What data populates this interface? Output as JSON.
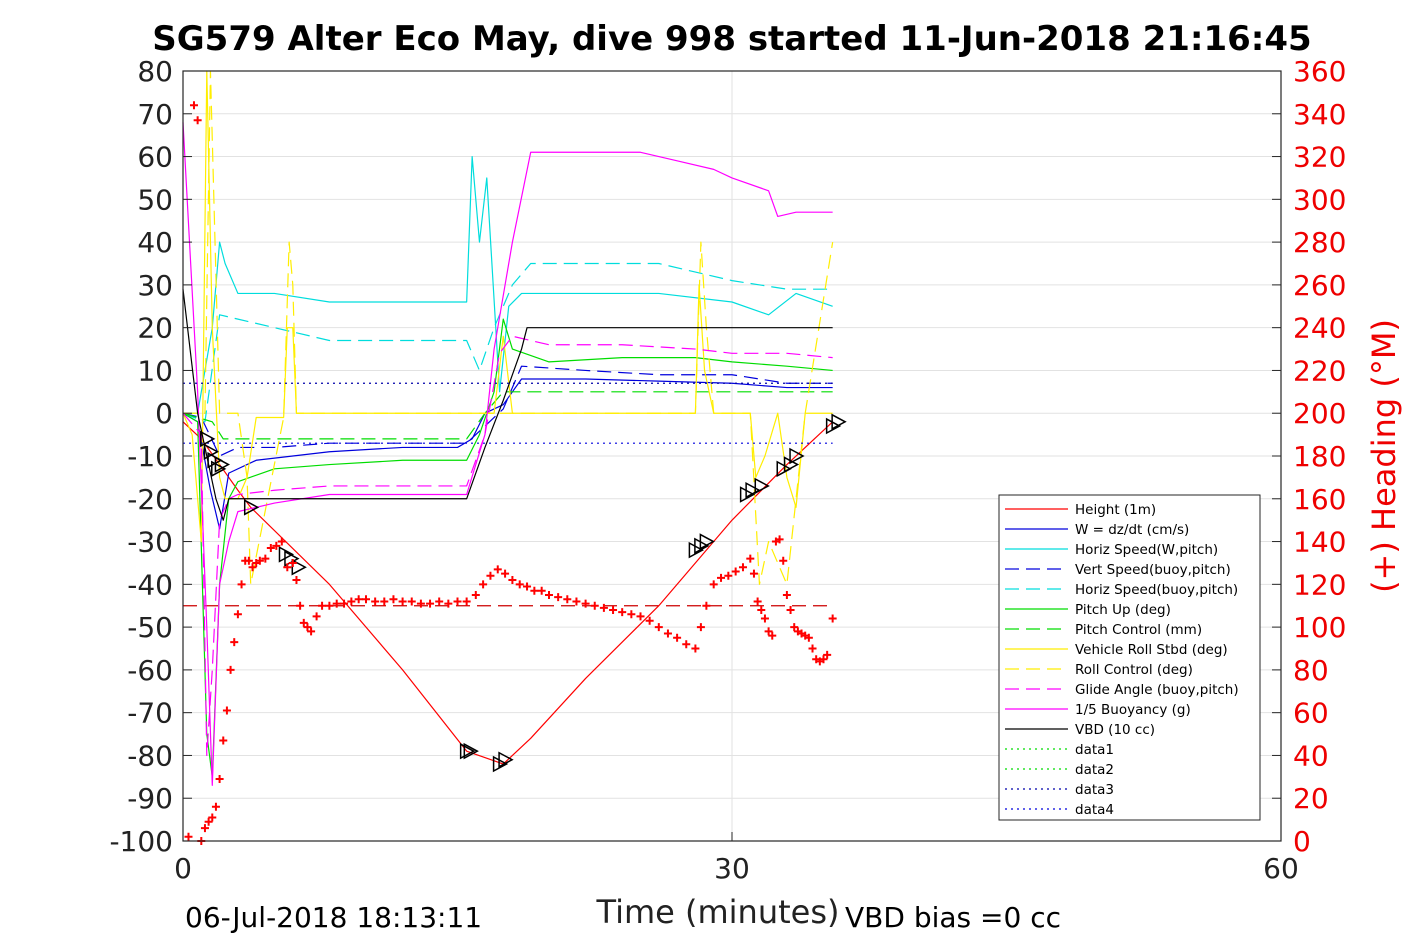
{
  "chart_data": {
    "type": "line",
    "title": "SG579 Alter Eco May, dive 998 started 11-Jun-2018 21:16:45",
    "xlabel": "Time (minutes)",
    "ylabel": "",
    "ylabel_right": "(+) Heading (°M)",
    "xlim": [
      0,
      60
    ],
    "ylim": [
      -100,
      80
    ],
    "ylim_right": [
      0,
      360
    ],
    "xticks": [
      0,
      30,
      60
    ],
    "yticks": [
      80,
      70,
      60,
      50,
      40,
      30,
      20,
      10,
      0,
      -10,
      -20,
      -30,
      -40,
      -50,
      -60,
      -70,
      -80,
      -90,
      -100
    ],
    "yticks_right": [
      360,
      340,
      320,
      300,
      280,
      260,
      240,
      220,
      200,
      180,
      160,
      140,
      120,
      100,
      80,
      60,
      40,
      20,
      0
    ],
    "grid": "major at ticks",
    "legend_position": "lower-right",
    "footer_left": "06-Jul-2018 18:13:11",
    "footer_right": "VBD bias =0 cc",
    "series": [
      {
        "name": "Height (1m)",
        "color": "#ff0000",
        "dash": "solid",
        "x": [
          0,
          1,
          2,
          3,
          3.7,
          8,
          12,
          15.5,
          17.5,
          19,
          22,
          26,
          30,
          33,
          35.5
        ],
        "y": [
          -2,
          -6,
          -12,
          -18,
          -22,
          -40,
          -60,
          -79,
          -82,
          -76,
          -62,
          -45,
          -25,
          -12,
          -2
        ]
      },
      {
        "name": "W = dz/dt (cm/s)",
        "color": "#0000dd",
        "dash": "solid",
        "x": [
          0,
          0.8,
          1.5,
          2,
          2.5,
          4,
          8,
          12,
          15,
          15.8,
          16.5,
          17.5,
          18.5,
          22,
          26,
          30,
          33,
          35.5
        ],
        "y": [
          0,
          -2,
          -18,
          -27,
          -14,
          -11,
          -9,
          -8,
          -8,
          -6,
          0,
          2,
          8,
          8,
          7.5,
          7,
          6,
          6
        ]
      },
      {
        "name": "Horiz Speed(W,pitch)",
        "color": "#00dddd",
        "dash": "solid",
        "x": [
          0,
          0.8,
          1.6,
          2,
          2.3,
          3,
          5,
          8,
          12,
          15.5,
          15.8,
          16.2,
          16.6,
          17.3,
          17.8,
          18.5,
          22,
          26,
          30,
          32,
          33.5,
          35.5
        ],
        "y": [
          0,
          0,
          20,
          40,
          35,
          28,
          28,
          26,
          26,
          26,
          60,
          40,
          55,
          5,
          25,
          28,
          28,
          28,
          26,
          23,
          28,
          25
        ]
      },
      {
        "name": "Vert Speed(buoy,pitch)",
        "color": "#0000dd",
        "dash": "dash",
        "x": [
          0,
          1,
          2,
          3,
          5,
          8,
          12,
          15.5,
          16.5,
          17.5,
          18.5,
          22,
          26,
          30,
          33,
          35.5
        ],
        "y": [
          0,
          -1,
          -10,
          -8,
          -8,
          -7,
          -7,
          -7,
          -3,
          1,
          11,
          10,
          9,
          9,
          7,
          7
        ]
      },
      {
        "name": "Horiz Speed(buoy,pitch)",
        "color": "#00dddd",
        "dash": "dash",
        "x": [
          0,
          1.2,
          2,
          3,
          5,
          8,
          12,
          15.5,
          16.2,
          17,
          18,
          19,
          22,
          26,
          30,
          33,
          35.5
        ],
        "y": [
          0,
          -2,
          23,
          22,
          20,
          17,
          17,
          17,
          10,
          20,
          30,
          35,
          35,
          35,
          31,
          29,
          29
        ]
      },
      {
        "name": "Pitch Up (deg)",
        "color": "#00dd00",
        "dash": "solid",
        "x": [
          0,
          0.8,
          1.3,
          1.6,
          2,
          2.5,
          3,
          5,
          8,
          12,
          15.5,
          16.2,
          17,
          17.5,
          18,
          20,
          24,
          28,
          30,
          33,
          35.5
        ],
        "y": [
          0,
          -2,
          -75,
          -85,
          -40,
          -20,
          -16,
          -13,
          -12,
          -11,
          -11,
          -5,
          5,
          22,
          15,
          12,
          13,
          13,
          12,
          11,
          10
        ]
      },
      {
        "name": "Pitch Control (mm)",
        "color": "#00dd00",
        "dash": "dash",
        "x": [
          0,
          1.6,
          2.2,
          3,
          8,
          15.5,
          16.5,
          17.5,
          18.5,
          22,
          28,
          35.5
        ],
        "y": [
          0,
          -2,
          -6,
          -6,
          -6,
          -6,
          0,
          5,
          5,
          5,
          5,
          5
        ]
      },
      {
        "name": "Vehicle Roll Stbd (deg)",
        "color": "#ffee00",
        "dash": "solid",
        "x": [
          0,
          0.5,
          1,
          1.3,
          1.6,
          2,
          2.3,
          3,
          3.5,
          4,
          5.5,
          5.7,
          6,
          6.2,
          8,
          12,
          16,
          17,
          17.5,
          18,
          22,
          26,
          28,
          28.2,
          28.5,
          29,
          29.5,
          31,
          31.3,
          31.8,
          32.5,
          33,
          33.5,
          34,
          35,
          35.5
        ],
        "y": [
          0,
          -5,
          -30,
          80,
          20,
          -15,
          -20,
          -20,
          -15,
          -1,
          -1,
          20,
          20,
          0,
          0,
          0,
          0,
          0,
          18,
          0,
          0,
          0,
          0,
          30,
          10,
          0,
          0,
          0,
          -15,
          -10,
          0,
          -15,
          -22,
          0,
          0,
          0
        ]
      },
      {
        "name": "Roll Control (deg)",
        "color": "#ffee00",
        "dash": "dash",
        "x": [
          0,
          1.2,
          1.5,
          2,
          3,
          3.5,
          3.7,
          5.5,
          5.8,
          6,
          6.2,
          8,
          15.5,
          17,
          18,
          22,
          28,
          28.3,
          28.6,
          29,
          31,
          31.5,
          32,
          33,
          33.5,
          34,
          35.5
        ],
        "y": [
          0,
          0,
          80,
          0,
          0,
          -15,
          -40,
          -1,
          40,
          30,
          0,
          0,
          0,
          0,
          0,
          0,
          0,
          40,
          20,
          0,
          0,
          -40,
          -30,
          -40,
          -20,
          0,
          40
        ]
      },
      {
        "name": "Glide Angle (buoy,pitch)",
        "color": "#ff00ff",
        "dash": "dash",
        "x": [
          0,
          1,
          1.3,
          1.6,
          2,
          2.5,
          3,
          5,
          8,
          12,
          15.5,
          16.5,
          17.3,
          18,
          20,
          24,
          28,
          30,
          33,
          35.5
        ],
        "y": [
          0,
          -5,
          -80,
          -60,
          -25,
          -20,
          -19,
          -18,
          -17,
          -17,
          -17,
          -5,
          14,
          18,
          16,
          16,
          15,
          14,
          14,
          13
        ]
      },
      {
        "name": "1/5 Buoyancy (g)",
        "color": "#ff00ff",
        "dash": "solid",
        "x": [
          0,
          0.8,
          1.3,
          1.6,
          2,
          2.5,
          3,
          5,
          8,
          12,
          15.5,
          16.5,
          17,
          18,
          19,
          20,
          25,
          27,
          29,
          30,
          32,
          32.5,
          33.5,
          35.5
        ],
        "y": [
          68,
          5,
          -50,
          -87,
          -40,
          -30,
          -23,
          -21,
          -19,
          -19,
          -19,
          -5,
          15,
          40,
          61,
          61,
          61,
          59,
          57,
          55,
          52,
          46,
          47,
          47
        ]
      },
      {
        "name": "VBD (10 cc)",
        "color": "#000000",
        "dash": "solid",
        "x": [
          0,
          0.8,
          1.3,
          1.8,
          2.2,
          2.5,
          5,
          10,
          15.5,
          16.5,
          17.5,
          18.5,
          18.8,
          25,
          30,
          35.5
        ],
        "y": [
          29,
          0,
          -10,
          -20,
          -25,
          -20,
          -20,
          -20,
          -20,
          -8,
          3,
          15,
          20,
          20,
          20,
          20
        ]
      },
      {
        "name": "data1",
        "color": "#00dd00",
        "dash": "dot",
        "x": [],
        "y": []
      },
      {
        "name": "data2",
        "color": "#00dd00",
        "dash": "dot",
        "x": [],
        "y": []
      },
      {
        "name": "data3",
        "color": "#0000aa",
        "dash": "dot",
        "x": [
          0,
          35.5
        ],
        "y": [
          7,
          7
        ]
      },
      {
        "name": "data4",
        "color": "#0000dd",
        "dash": "dot",
        "x": [
          0,
          35.5
        ],
        "y": [
          -7,
          -7
        ]
      }
    ],
    "reference_lines": [
      {
        "color": "#cc0000",
        "dash": "dash",
        "x": [
          0,
          35.5
        ],
        "y": [
          -45,
          -45
        ]
      }
    ],
    "heading_points": {
      "color": "#ff0000",
      "marker": "+",
      "x": [
        0.3,
        0.6,
        0.8,
        1,
        1.2,
        1.4,
        1.6,
        1.8,
        2,
        2.2,
        2.4,
        2.6,
        2.8,
        3,
        3.2,
        3.4,
        3.6,
        3.8,
        4,
        4.2,
        4.5,
        4.8,
        5.1,
        5.4,
        5.7,
        6,
        6.2,
        6.4,
        6.6,
        6.8,
        7,
        7.3,
        7.6,
        8,
        8.4,
        8.8,
        9.2,
        9.6,
        10,
        10.5,
        11,
        11.5,
        12,
        12.5,
        13,
        13.5,
        14,
        14.5,
        15,
        15.5,
        16,
        16.4,
        16.8,
        17.2,
        17.6,
        18,
        18.4,
        18.8,
        19.2,
        19.6,
        20,
        20.5,
        21,
        21.5,
        22,
        22.5,
        23,
        23.5,
        24,
        24.5,
        25,
        25.5,
        26,
        26.5,
        27,
        27.5,
        28,
        28.3,
        28.6,
        29,
        29.4,
        29.8,
        30.2,
        30.6,
        31,
        31.2,
        31.4,
        31.6,
        31.8,
        32,
        32.2,
        32.4,
        32.6,
        32.8,
        33,
        33.2,
        33.4,
        33.6,
        33.8,
        34,
        34.2,
        34.4,
        34.6,
        34.8,
        35,
        35.2,
        35.5
      ],
      "y": [
        2,
        344,
        337,
        0,
        6,
        9,
        11,
        16,
        29,
        47,
        61,
        80,
        93,
        106,
        120,
        131,
        131,
        128,
        130,
        131,
        132,
        137,
        138,
        140,
        128,
        130,
        122,
        110,
        102,
        100,
        98,
        105,
        110,
        110,
        111,
        111,
        112,
        113,
        113,
        112,
        112,
        113,
        112,
        112,
        111,
        111,
        112,
        111,
        112,
        112,
        115,
        120,
        124,
        127,
        125,
        122,
        120,
        119,
        117,
        117,
        115,
        114,
        113,
        112,
        111,
        110,
        109,
        108,
        107,
        106,
        105,
        103,
        100,
        97,
        95,
        92,
        90,
        100,
        110,
        120,
        123,
        124,
        126,
        128,
        132,
        125,
        112,
        108,
        104,
        98,
        96,
        140,
        141,
        131,
        115,
        108,
        100,
        98,
        97,
        96,
        95,
        90,
        85,
        84,
        85,
        87,
        104
      ]
    },
    "triangle_markers": {
      "color": "#000000",
      "marker": "triangle",
      "x": [
        1.3,
        1.5,
        1.7,
        1.9,
        2.1,
        3.7,
        5.6,
        5.9,
        6.3,
        15.5,
        15.7,
        17.3,
        17.6,
        28,
        28.3,
        28.6,
        30.8,
        31.1,
        31.6,
        32.8,
        33.2,
        33.5,
        35.5,
        35.8
      ],
      "y": [
        -6,
        -9,
        -11,
        -13,
        -12,
        -22,
        -33,
        -34,
        -36,
        -79,
        -79,
        -82,
        -81,
        -32,
        -31,
        -30,
        -19,
        -18,
        -17,
        -13,
        -12,
        -10,
        -3,
        -2
      ]
    }
  }
}
